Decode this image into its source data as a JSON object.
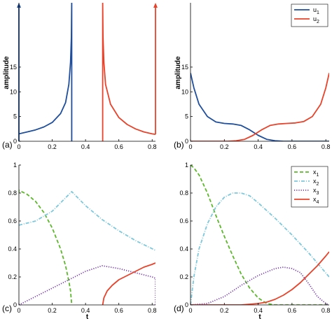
{
  "chart_data": [
    {
      "panel_label": "(a)",
      "type": "line",
      "ylabel": "amplitude",
      "xlabel": "",
      "xlim": [
        0,
        0.82
      ],
      "ylim": [
        0,
        28
      ],
      "xticks": [
        0,
        0.2,
        0.4,
        0.6,
        0.8
      ],
      "xtick_labels": [
        "0",
        "0.2",
        "0.4",
        "0.6",
        "0.8"
      ],
      "yticks": [
        0,
        5,
        10,
        15
      ],
      "ytick_labels": [
        "0",
        "5",
        "10",
        "15"
      ],
      "legend": null,
      "series": [
        {
          "name": "u1",
          "color": "#1f4e9c",
          "dash": "solid",
          "x": [
            0,
            0.05,
            0.1,
            0.15,
            0.2,
            0.25,
            0.28,
            0.3,
            0.31,
            0.315,
            0.317,
            0.317,
            0.317
          ],
          "y": [
            1.5,
            1.9,
            2.3,
            2.9,
            3.8,
            5.6,
            7.8,
            11.5,
            16,
            21,
            28,
            28,
            0
          ]
        },
        {
          "name": "u2",
          "color": "#e8432a",
          "dash": "solid",
          "x": [
            0.503,
            0.503,
            0.503,
            0.505,
            0.51,
            0.52,
            0.55,
            0.6,
            0.65,
            0.7,
            0.75,
            0.8,
            0.82
          ],
          "y": [
            0,
            28,
            28,
            21,
            16,
            11.5,
            7.5,
            4.8,
            3.4,
            2.5,
            1.9,
            1.5,
            1.4
          ]
        }
      ]
    },
    {
      "panel_label": "(b)",
      "type": "line",
      "ylabel": "amplitude",
      "xlabel": "",
      "xlim": [
        0,
        0.82
      ],
      "ylim": [
        0,
        28
      ],
      "xticks": [
        0,
        0.2,
        0.4,
        0.6,
        0.8
      ],
      "xtick_labels": [
        "0",
        "0.2",
        "0.4",
        "0.6",
        "0.8"
      ],
      "yticks": [
        0,
        5,
        10,
        15
      ],
      "ytick_labels": [
        "0",
        "5",
        "10",
        "15"
      ],
      "legend": {
        "placement": "top-right",
        "entries": [
          {
            "main": "u",
            "sub": "1"
          },
          {
            "main": "u",
            "sub": "2"
          }
        ]
      },
      "series": [
        {
          "name": "u1",
          "color": "#1f4e9c",
          "dash": "solid",
          "x": [
            0,
            0.02,
            0.05,
            0.1,
            0.15,
            0.2,
            0.25,
            0.3,
            0.35,
            0.4,
            0.45,
            0.5,
            0.55,
            0.6,
            0.7,
            0.82
          ],
          "y": [
            13.8,
            10.8,
            7.5,
            5,
            3.9,
            3.6,
            3.5,
            3.2,
            2.3,
            1.2,
            0.4,
            0.1,
            0,
            0,
            0,
            0
          ]
        },
        {
          "name": "u2",
          "color": "#e8432a",
          "dash": "solid",
          "x": [
            0,
            0.12,
            0.22,
            0.27,
            0.32,
            0.37,
            0.42,
            0.47,
            0.52,
            0.57,
            0.62,
            0.67,
            0.72,
            0.77,
            0.8,
            0.82
          ],
          "y": [
            0,
            0,
            0,
            0.1,
            0.4,
            1.2,
            2.3,
            3.2,
            3.5,
            3.6,
            3.7,
            4,
            5,
            7.5,
            10.8,
            13.8
          ]
        }
      ]
    },
    {
      "panel_label": "(c)",
      "type": "line",
      "ylabel": "",
      "xlabel": "t",
      "xlim": [
        0,
        0.82
      ],
      "ylim": [
        0,
        1
      ],
      "xticks": [
        0,
        0.2,
        0.4,
        0.6,
        0.8
      ],
      "xtick_labels": [
        "0",
        "0.2",
        "0.4",
        "0.6",
        "0.8"
      ],
      "yticks": [
        0,
        0.2,
        0.4,
        0.6,
        0.8,
        1
      ],
      "ytick_labels": [
        "0",
        "0.2",
        "0.4",
        "0.6",
        "0.8",
        "1"
      ],
      "legend": null,
      "series": [
        {
          "name": "x1",
          "color": "#5cb82a",
          "dash": "dash",
          "x": [
            0,
            0,
            0.05,
            0.1,
            0.15,
            0.2,
            0.25,
            0.28,
            0.3,
            0.31,
            0.317
          ],
          "y": [
            0.8,
            0.82,
            0.79,
            0.74,
            0.66,
            0.55,
            0.4,
            0.28,
            0.17,
            0.1,
            0
          ]
        },
        {
          "name": "x2",
          "color": "#7ec8dc",
          "dash": "dashdot",
          "x": [
            0,
            0.1,
            0.2,
            0.25,
            0.317,
            0.4,
            0.5,
            0.6,
            0.7,
            0.82
          ],
          "y": [
            0.57,
            0.6,
            0.67,
            0.73,
            0.81,
            0.71,
            0.61,
            0.53,
            0.46,
            0.39
          ]
        },
        {
          "name": "x3",
          "color": "#7a3eb0",
          "dash": "dot",
          "x": [
            0,
            0.1,
            0.2,
            0.317,
            0.4,
            0.5,
            0.6,
            0.7,
            0.8,
            0.82,
            0.82
          ],
          "y": [
            0,
            0.06,
            0.12,
            0.19,
            0.24,
            0.28,
            0.26,
            0.23,
            0.2,
            0.19,
            0
          ]
        },
        {
          "name": "x4",
          "color": "#e8432a",
          "dash": "solid",
          "x": [
            0.503,
            0.51,
            0.53,
            0.56,
            0.6,
            0.65,
            0.7,
            0.75,
            0.8,
            0.82
          ],
          "y": [
            0,
            0.05,
            0.1,
            0.14,
            0.18,
            0.21,
            0.24,
            0.27,
            0.29,
            0.3
          ]
        }
      ]
    },
    {
      "panel_label": "(d)",
      "type": "line",
      "ylabel": "",
      "xlabel": "t",
      "xlim": [
        0,
        0.82
      ],
      "ylim": [
        0,
        1
      ],
      "xticks": [
        0,
        0.2,
        0.4,
        0.6,
        0.8
      ],
      "xtick_labels": [
        "0",
        "0.2",
        "0.4",
        "0.6",
        "0.8"
      ],
      "yticks": [
        0,
        0.2,
        0.4,
        0.6,
        0.8,
        1
      ],
      "ytick_labels": [
        "0",
        "0.2",
        "0.4",
        "0.6",
        "0.8",
        "1"
      ],
      "legend": {
        "placement": "top-right",
        "entries": [
          {
            "main": "x",
            "sub": "1"
          },
          {
            "main": "x",
            "sub": "2"
          },
          {
            "main": "x",
            "sub": "3"
          },
          {
            "main": "x",
            "sub": "4"
          }
        ]
      },
      "series": [
        {
          "name": "x1",
          "color": "#5cb82a",
          "dash": "dash",
          "x": [
            0,
            0.02,
            0.05,
            0.1,
            0.15,
            0.2,
            0.25,
            0.3,
            0.35,
            0.4,
            0.45,
            0.5,
            0.55,
            0.82
          ],
          "y": [
            1,
            0.98,
            0.93,
            0.8,
            0.64,
            0.49,
            0.35,
            0.22,
            0.12,
            0.05,
            0.01,
            0,
            0,
            0
          ]
        },
        {
          "name": "x2",
          "color": "#7ec8dc",
          "dash": "dashdot",
          "x": [
            0,
            0.02,
            0.05,
            0.1,
            0.15,
            0.2,
            0.25,
            0.3,
            0.35,
            0.4,
            0.5,
            0.6,
            0.7,
            0.82
          ],
          "y": [
            0,
            0.2,
            0.4,
            0.58,
            0.7,
            0.77,
            0.8,
            0.8,
            0.78,
            0.73,
            0.62,
            0.5,
            0.37,
            0.2
          ]
        },
        {
          "name": "x3",
          "color": "#7a3eb0",
          "dash": "dot",
          "x": [
            0,
            0.1,
            0.2,
            0.3,
            0.4,
            0.5,
            0.55,
            0.6,
            0.65,
            0.7,
            0.75,
            0.8,
            0.82
          ],
          "y": [
            0,
            0.01,
            0.06,
            0.14,
            0.21,
            0.26,
            0.27,
            0.26,
            0.23,
            0.15,
            0.06,
            0.01,
            0
          ]
        },
        {
          "name": "x4",
          "color": "#e8432a",
          "dash": "solid",
          "x": [
            0,
            0.2,
            0.3,
            0.35,
            0.4,
            0.45,
            0.5,
            0.55,
            0.6,
            0.65,
            0.7,
            0.75,
            0.8,
            0.82
          ],
          "y": [
            0,
            0,
            0,
            0.005,
            0.01,
            0.02,
            0.04,
            0.07,
            0.11,
            0.16,
            0.22,
            0.28,
            0.35,
            0.38
          ]
        }
      ]
    }
  ]
}
